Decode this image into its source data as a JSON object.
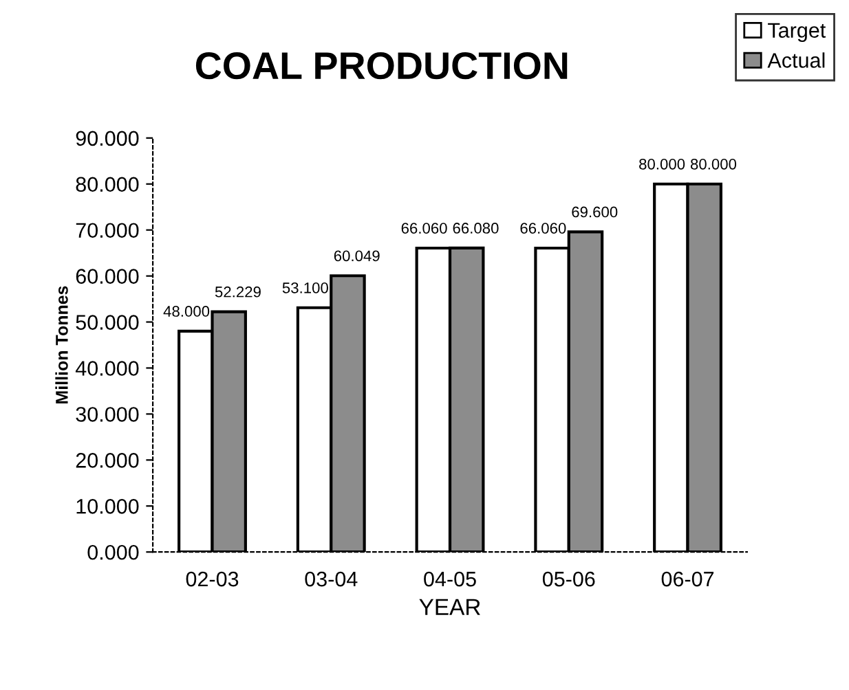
{
  "chart_data": {
    "type": "bar",
    "title": "COAL PRODUCTION",
    "xlabel": "YEAR",
    "ylabel": "Million Tonnes",
    "categories": [
      "02-03",
      "03-04",
      "04-05",
      "05-06",
      "06-07"
    ],
    "series": [
      {
        "name": "Target",
        "color": "#ffffff",
        "values": [
          48.0,
          53.1,
          66.06,
          66.06,
          80.0
        ],
        "value_labels": [
          "48.000",
          "53.100",
          "66.060",
          "66.060",
          "80.000"
        ]
      },
      {
        "name": "Actual",
        "color": "#8c8c8c",
        "values": [
          52.229,
          60.049,
          66.08,
          69.6,
          80.0
        ],
        "value_labels": [
          "52.229",
          "60.049",
          "66.080",
          "69.600",
          "80.000"
        ]
      }
    ],
    "ylim": [
      0,
      90
    ],
    "yticks": [
      {
        "value": 0,
        "label": "0.000"
      },
      {
        "value": 10,
        "label": "10.000"
      },
      {
        "value": 20,
        "label": "20.000"
      },
      {
        "value": 30,
        "label": "30.000"
      },
      {
        "value": 40,
        "label": "40.000"
      },
      {
        "value": 50,
        "label": "50.000"
      },
      {
        "value": 60,
        "label": "60.000"
      },
      {
        "value": 70,
        "label": "70.000"
      },
      {
        "value": 80,
        "label": "80.000"
      },
      {
        "value": 90,
        "label": "90.000"
      }
    ],
    "grid": false,
    "legend": "top right"
  }
}
